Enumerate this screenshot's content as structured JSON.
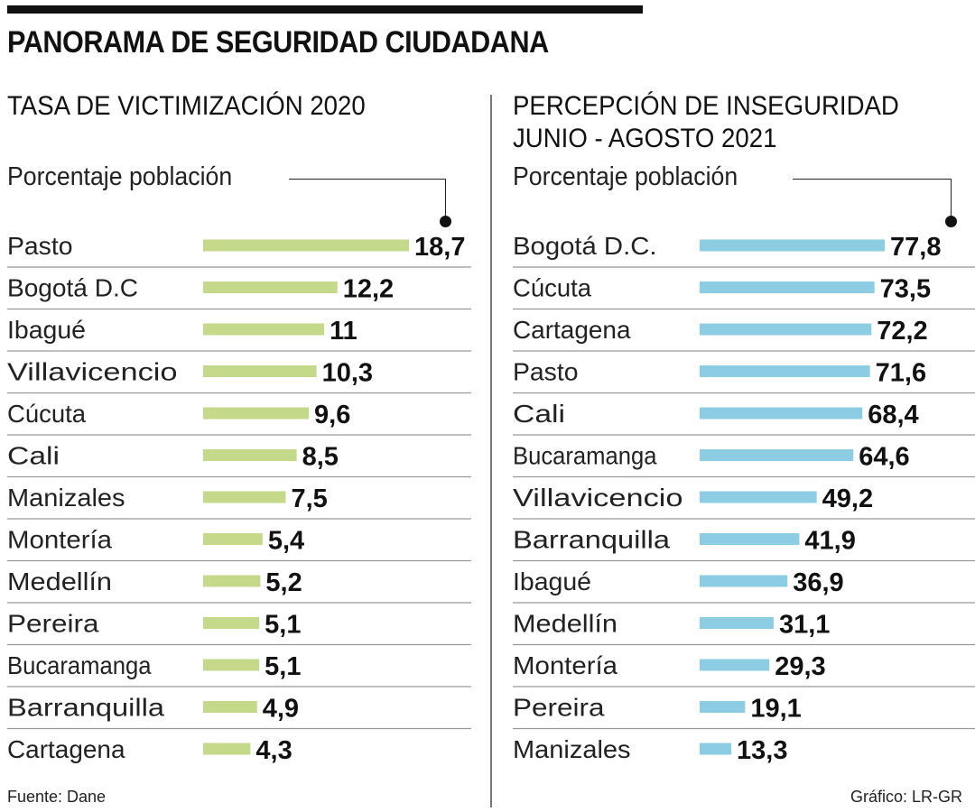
{
  "title": "PANORAMA DE SEGURIDAD CIUDADANA",
  "source": "Fuente: Dane",
  "credit": "Gráfico: LR-GR",
  "chart_data": [
    {
      "type": "bar",
      "orientation": "horizontal",
      "title": "TASA DE VICTIMIZACIÓN 2020",
      "unit_label": "Porcentaje población",
      "color": "#c4da8a",
      "categories": [
        "Pasto",
        "Bogotá D.C",
        "Ibagué",
        "Villavicencio",
        "Cúcuta",
        "Cali",
        "Manizales",
        "Montería",
        "Medellín",
        "Pereira",
        "Bucaramanga",
        "Barranquilla",
        "Cartagena"
      ],
      "values": [
        18.7,
        12.2,
        11,
        10.3,
        9.6,
        8.5,
        7.5,
        5.4,
        5.2,
        5.1,
        5.1,
        4.9,
        4.3
      ],
      "labels": [
        "18,7",
        "12,2",
        "11",
        "10,3",
        "9,6",
        "8,5",
        "7,5",
        "5,4",
        "5,2",
        "5,1",
        "5,1",
        "4,9",
        "4,3"
      ],
      "xlim": [
        0,
        18.7
      ]
    },
    {
      "type": "bar",
      "orientation": "horizontal",
      "title": "PERCEPCIÓN DE INSEGURIDAD\nJUNIO - AGOSTO 2021",
      "title_lines": [
        "PERCEPCIÓN DE INSEGURIDAD",
        "JUNIO - AGOSTO 2021"
      ],
      "unit_label": "Porcentaje población",
      "color": "#8dcde3",
      "categories": [
        "Bogotá D.C.",
        "Cúcuta",
        "Cartagena",
        "Pasto",
        "Cali",
        "Bucaramanga",
        "Villavicencio",
        "Barranquilla",
        "Ibagué",
        "Medellín",
        "Montería",
        "Pereira",
        "Manizales"
      ],
      "values": [
        77.8,
        73.5,
        72.2,
        71.6,
        68.4,
        64.6,
        49.2,
        41.9,
        36.9,
        31.1,
        29.3,
        19.1,
        13.3
      ],
      "labels": [
        "77,8",
        "73,5",
        "72,2",
        "71,6",
        "68,4",
        "64,6",
        "49,2",
        "41,9",
        "36,9",
        "31,1",
        "29,3",
        "19,1",
        "13,3"
      ],
      "xlim": [
        0,
        77.8
      ]
    }
  ]
}
